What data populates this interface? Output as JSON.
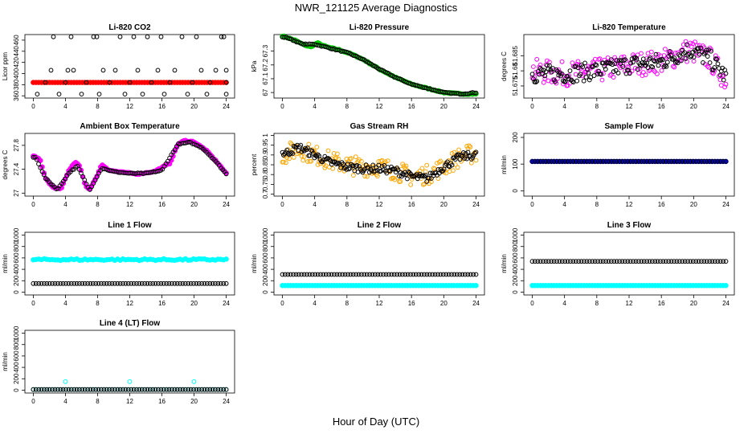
{
  "title": "NWR_121125  Average Diagnostics",
  "xlabel": "Hour of Day (UTC)",
  "chart_data": [
    {
      "type": "scatter",
      "title": "Li-820 CO2",
      "ylabel": "Licor ppm",
      "xlim": [
        0,
        24
      ],
      "xticks": [
        0,
        4,
        8,
        12,
        16,
        20,
        24
      ],
      "ylim": [
        356,
        470
      ],
      "yticks": [
        360,
        380,
        400,
        420,
        440,
        460
      ],
      "grid": false,
      "series": [
        {
          "color": "#ff0000",
          "marker": "filled",
          "values": "~384 ppm at every point, 0-24 h",
          "y": 384
        },
        {
          "color": "#000000",
          "marker": "open",
          "points": [
            [
              0.5,
              363
            ],
            [
              1.5,
              384
            ],
            [
              2.2,
              406
            ],
            [
              2.5,
              466
            ],
            [
              3.2,
              363
            ],
            [
              4,
              384
            ],
            [
              4.3,
              406
            ],
            [
              4.7,
              466
            ],
            [
              5,
              406
            ],
            [
              6,
              363
            ],
            [
              6.6,
              384
            ],
            [
              7.5,
              466
            ],
            [
              7.9,
              466
            ],
            [
              8.2,
              363
            ],
            [
              8.7,
              406
            ],
            [
              9.5,
              384
            ],
            [
              10.2,
              406
            ],
            [
              10.8,
              466
            ],
            [
              11.4,
              363
            ],
            [
              12,
              384
            ],
            [
              12.5,
              466
            ],
            [
              13,
              406
            ],
            [
              13.6,
              363
            ],
            [
              14.2,
              466
            ],
            [
              14.7,
              384
            ],
            [
              15.5,
              406
            ],
            [
              15.9,
              466
            ],
            [
              16.3,
              363
            ],
            [
              17,
              384
            ],
            [
              17.6,
              406
            ],
            [
              18.5,
              466
            ],
            [
              19.2,
              363
            ],
            [
              19.8,
              384
            ],
            [
              20.3,
              466
            ],
            [
              20.9,
              406
            ],
            [
              21.6,
              363
            ],
            [
              22,
              384
            ],
            [
              22.7,
              406
            ],
            [
              23.4,
              466
            ],
            [
              23.7,
              466
            ],
            [
              24,
              363
            ],
            [
              24,
              384
            ],
            [
              24,
              406
            ]
          ]
        }
      ]
    },
    {
      "type": "scatter",
      "title": "Li-820 Pressure",
      "ylabel": "kPa",
      "xlim": [
        0,
        24
      ],
      "xticks": [
        0,
        4,
        8,
        12,
        16,
        20,
        24
      ],
      "ylim": [
        66.96,
        67.42
      ],
      "yticks": [
        67.0,
        67.1,
        67.2,
        67.3
      ],
      "grid": false,
      "series": [
        {
          "color": "#00cc00",
          "marker": "filled",
          "trend": [
            [
              0,
              67.41
            ],
            [
              1.5,
              67.38
            ],
            [
              2.5,
              67.35
            ],
            [
              3.5,
              67.33
            ],
            [
              4.3,
              67.36
            ],
            [
              5.5,
              67.33
            ],
            [
              7,
              67.31
            ],
            [
              8.5,
              67.28
            ],
            [
              10,
              67.24
            ],
            [
              12,
              67.17
            ],
            [
              14,
              67.11
            ],
            [
              16,
              67.06
            ],
            [
              18,
              67.03
            ],
            [
              20,
              67.0
            ],
            [
              22,
              66.99
            ],
            [
              24,
              66.99
            ]
          ]
        },
        {
          "color": "#000000",
          "marker": "open",
          "trend": [
            [
              0.5,
              67.4
            ],
            [
              2.5,
              67.35
            ],
            [
              4,
              67.35
            ],
            [
              6,
              67.32
            ],
            [
              8,
              67.29
            ],
            [
              10,
              67.24
            ],
            [
              12,
              67.17
            ],
            [
              14,
              67.11
            ],
            [
              16,
              67.06
            ],
            [
              18,
              67.03
            ],
            [
              20,
              67.0
            ],
            [
              22,
              66.99
            ],
            [
              24,
              67.0
            ]
          ]
        }
      ]
    },
    {
      "type": "scatter",
      "title": "Li-820 Temperature",
      "ylabel": "degrees C",
      "xlim": [
        0,
        24
      ],
      "xticks": [
        0,
        4,
        8,
        12,
        16,
        20,
        24
      ],
      "ylim": [
        51.671,
        51.692
      ],
      "yticks": [
        51.675,
        51.68,
        51.685
      ],
      "grid": false,
      "series": [
        {
          "color": "#ff00ff",
          "marker": "open",
          "trend": [
            [
              0,
              51.68
            ],
            [
              4,
              51.679
            ],
            [
              8,
              51.68
            ],
            [
              12,
              51.682
            ],
            [
              16,
              51.683
            ],
            [
              19.5,
              51.687
            ],
            [
              22,
              51.684
            ],
            [
              24,
              51.677
            ]
          ],
          "spread": 0.004
        },
        {
          "color": "#000000",
          "marker": "open",
          "trend": [
            [
              0,
              51.679
            ],
            [
              4,
              51.679
            ],
            [
              8,
              51.68
            ],
            [
              12,
              51.682
            ],
            [
              16,
              51.683
            ],
            [
              19.5,
              51.687
            ],
            [
              22,
              51.684
            ],
            [
              24,
              51.678
            ]
          ],
          "spread": 0.003
        }
      ]
    },
    {
      "type": "scatter",
      "title": "Ambient Box Temperature",
      "ylabel": "degrees C",
      "xlim": [
        0,
        24
      ],
      "xticks": [
        0,
        4,
        8,
        12,
        16,
        20,
        24
      ],
      "ylim": [
        26.95,
        28.0
      ],
      "yticks": [
        27.0,
        27.4,
        27.8
      ],
      "grid": false,
      "series": [
        {
          "color": "#ff00ff",
          "marker": "filled",
          "trend": [
            [
              0,
              27.62
            ],
            [
              0.8,
              27.58
            ],
            [
              1.5,
              27.25
            ],
            [
              2.5,
              27.08
            ],
            [
              3.5,
              27.08
            ],
            [
              4.3,
              27.35
            ],
            [
              5.2,
              27.52
            ],
            [
              5.8,
              27.45
            ],
            [
              6.5,
              27.12
            ],
            [
              7.0,
              27.06
            ],
            [
              7.8,
              27.25
            ],
            [
              8.5,
              27.48
            ],
            [
              9.5,
              27.38
            ],
            [
              11,
              27.35
            ],
            [
              13,
              27.32
            ],
            [
              15,
              27.36
            ],
            [
              17,
              27.5
            ],
            [
              18,
              27.82
            ],
            [
              18.8,
              27.88
            ],
            [
              20,
              27.86
            ],
            [
              21.5,
              27.72
            ],
            [
              23,
              27.5
            ],
            [
              24,
              27.33
            ]
          ]
        },
        {
          "color": "#000000",
          "marker": "open",
          "trend": [
            [
              0.3,
              27.6
            ],
            [
              1.5,
              27.25
            ],
            [
              3,
              27.06
            ],
            [
              4.5,
              27.35
            ],
            [
              5.5,
              27.45
            ],
            [
              7,
              27.05
            ],
            [
              8.5,
              27.42
            ],
            [
              10,
              27.36
            ],
            [
              12,
              27.33
            ],
            [
              14,
              27.33
            ],
            [
              16,
              27.38
            ],
            [
              18,
              27.82
            ],
            [
              19.5,
              27.85
            ],
            [
              21,
              27.76
            ],
            [
              22.5,
              27.56
            ],
            [
              24,
              27.32
            ]
          ]
        }
      ]
    },
    {
      "type": "scatter",
      "title": "Gas Stream RH",
      "ylabel": "percent",
      "xlim": [
        0,
        24
      ],
      "xticks": [
        0,
        4,
        8,
        12,
        16,
        20,
        24
      ],
      "ylim": [
        0.69,
        1.01
      ],
      "yticks": [
        0.7,
        0.75,
        0.8,
        0.85,
        0.9,
        0.95,
        1.0
      ],
      "grid": false,
      "series": [
        {
          "color": "#ffa500",
          "marker": "open",
          "trend": [
            [
              0,
              0.9
            ],
            [
              2,
              0.93
            ],
            [
              4,
              0.9
            ],
            [
              6,
              0.87
            ],
            [
              8,
              0.85
            ],
            [
              10,
              0.84
            ],
            [
              12,
              0.84
            ],
            [
              14,
              0.82
            ],
            [
              16,
              0.79
            ],
            [
              18,
              0.8
            ],
            [
              20,
              0.84
            ],
            [
              22,
              0.89
            ],
            [
              24,
              0.91
            ]
          ],
          "spread": 0.05
        },
        {
          "color": "#000000",
          "marker": "open",
          "trend": [
            [
              0.5,
              0.91
            ],
            [
              2,
              0.94
            ],
            [
              4,
              0.9
            ],
            [
              6,
              0.86
            ],
            [
              8,
              0.84
            ],
            [
              10,
              0.83
            ],
            [
              12,
              0.83
            ],
            [
              14,
              0.82
            ],
            [
              16,
              0.79
            ],
            [
              18,
              0.78
            ],
            [
              20,
              0.84
            ],
            [
              22,
              0.89
            ],
            [
              24,
              0.9
            ]
          ],
          "spread": 0.02
        }
      ]
    },
    {
      "type": "scatter",
      "title": "Sample Flow",
      "ylabel": "ml/min",
      "xlim": [
        0,
        24
      ],
      "xticks": [
        0,
        4,
        8,
        12,
        16,
        20,
        24
      ],
      "ylim": [
        -20,
        215
      ],
      "yticks": [
        0,
        100,
        200
      ],
      "grid": false,
      "series": [
        {
          "color": "#0000ff",
          "marker": "filled",
          "y": 110
        },
        {
          "color": "#000000",
          "marker": "open",
          "y": 110
        }
      ]
    },
    {
      "type": "scatter",
      "title": "Line 1 Flow",
      "ylabel": "ml/min",
      "xlim": [
        0,
        24
      ],
      "xticks": [
        0,
        4,
        8,
        12,
        16,
        20,
        24
      ],
      "ylim": [
        -50,
        1050
      ],
      "yticks": [
        0,
        200,
        400,
        600,
        800,
        1000
      ],
      "grid": false,
      "series": [
        {
          "color": "#00ffff",
          "marker": "filled",
          "y": 570,
          "band": 30
        },
        {
          "color": "#000000",
          "marker": "open",
          "y": 150
        }
      ]
    },
    {
      "type": "scatter",
      "title": "Line 2 Flow",
      "ylabel": "ml/min",
      "xlim": [
        0,
        24
      ],
      "xticks": [
        0,
        4,
        8,
        12,
        16,
        20,
        24
      ],
      "ylim": [
        -50,
        1050
      ],
      "yticks": [
        0,
        200,
        400,
        600,
        800,
        1000
      ],
      "grid": false,
      "series": [
        {
          "color": "#00ffff",
          "marker": "filled",
          "y": 115
        },
        {
          "color": "#000000",
          "marker": "open",
          "y": 310
        }
      ]
    },
    {
      "type": "scatter",
      "title": "Line 3 Flow",
      "ylabel": "ml/min",
      "xlim": [
        0,
        24
      ],
      "xticks": [
        0,
        4,
        8,
        12,
        16,
        20,
        24
      ],
      "ylim": [
        -50,
        1050
      ],
      "yticks": [
        0,
        200,
        400,
        600,
        800,
        1000
      ],
      "grid": false,
      "series": [
        {
          "color": "#00ffff",
          "marker": "filled",
          "y": 115
        },
        {
          "color": "#000000",
          "marker": "open",
          "y": 540
        }
      ]
    },
    {
      "type": "scatter",
      "title": "Line 4 (LT) Flow",
      "ylabel": "ml/min",
      "xlim": [
        0,
        24
      ],
      "xticks": [
        0,
        4,
        8,
        12,
        16,
        20,
        24
      ],
      "ylim": [
        -50,
        1050
      ],
      "yticks": [
        0,
        200,
        400,
        600,
        800,
        1000
      ],
      "grid": false,
      "series": [
        {
          "color": "#00ffff",
          "marker": "open",
          "y": 10,
          "outliers": [
            [
              4,
              150
            ],
            [
              12,
              150
            ],
            [
              20,
              150
            ]
          ]
        },
        {
          "color": "#000000",
          "marker": "open",
          "y": 10
        }
      ]
    }
  ]
}
